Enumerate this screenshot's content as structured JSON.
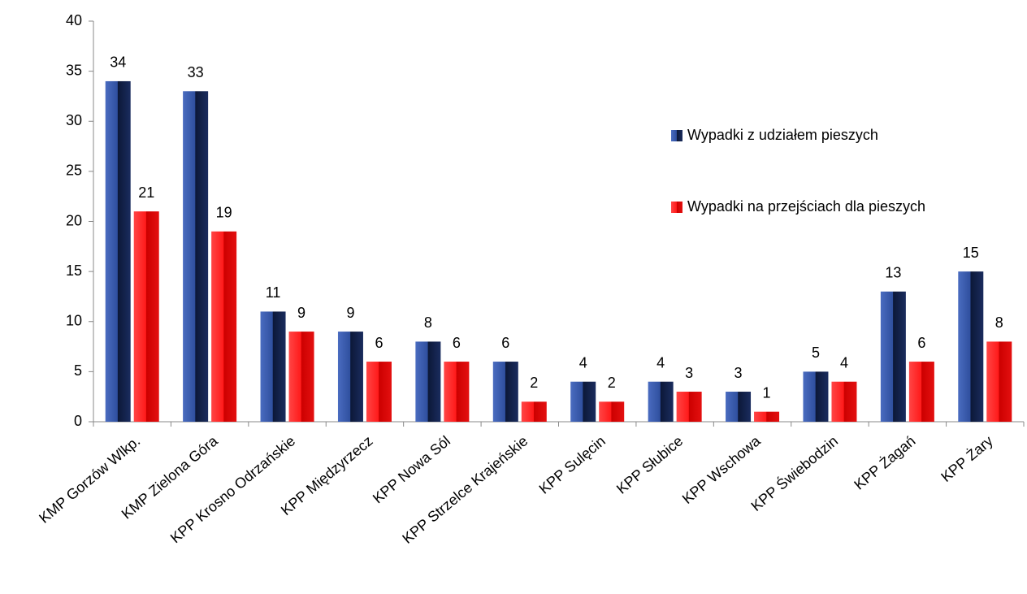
{
  "chart_data": {
    "type": "bar",
    "categories": [
      "KMP Gorzów Wlkp.",
      "KMP Zielona Góra",
      "KPP Krosno Odrzańskie",
      "KPP Międzyrzecz",
      "KPP Nowa Sól",
      "KPP Strzelce Krajeńskie",
      "KPP Sulęcin",
      "KPP Słubice",
      "KPP Wschowa",
      "KPP Świebodzin",
      "KPP Żagań",
      "KPP Żary"
    ],
    "series": [
      {
        "name": "Wypadki z udziałem pieszych",
        "color": "#3a5bab",
        "values": [
          34,
          33,
          11,
          9,
          8,
          6,
          4,
          4,
          3,
          5,
          13,
          15
        ]
      },
      {
        "name": "Wypadki na przejściach dla pieszych",
        "color": "#ff2222",
        "values": [
          21,
          19,
          9,
          6,
          6,
          2,
          2,
          3,
          1,
          4,
          6,
          8
        ]
      }
    ],
    "ylim": [
      0,
      40
    ],
    "yticks": [
      0,
      5,
      10,
      15,
      20,
      25,
      30,
      35,
      40
    ],
    "grid": false,
    "legend": "right"
  }
}
